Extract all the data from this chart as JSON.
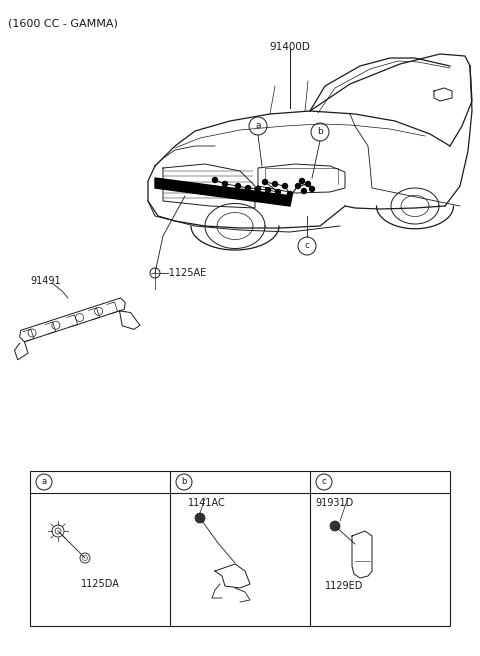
{
  "title": "(1600 CC - GAMMA)",
  "bg_color": "#ffffff",
  "line_color": "#1a1a1a",
  "label_91400D": "91400D",
  "label_91491": "91491",
  "label_1125AE": "1125AE",
  "box_labels": [
    "a",
    "b",
    "c"
  ],
  "box_part_labels_a": "1125DA",
  "box_part_labels_b": "1141AC",
  "box_part_labels_c1": "91931D",
  "box_part_labels_c2": "1129ED"
}
